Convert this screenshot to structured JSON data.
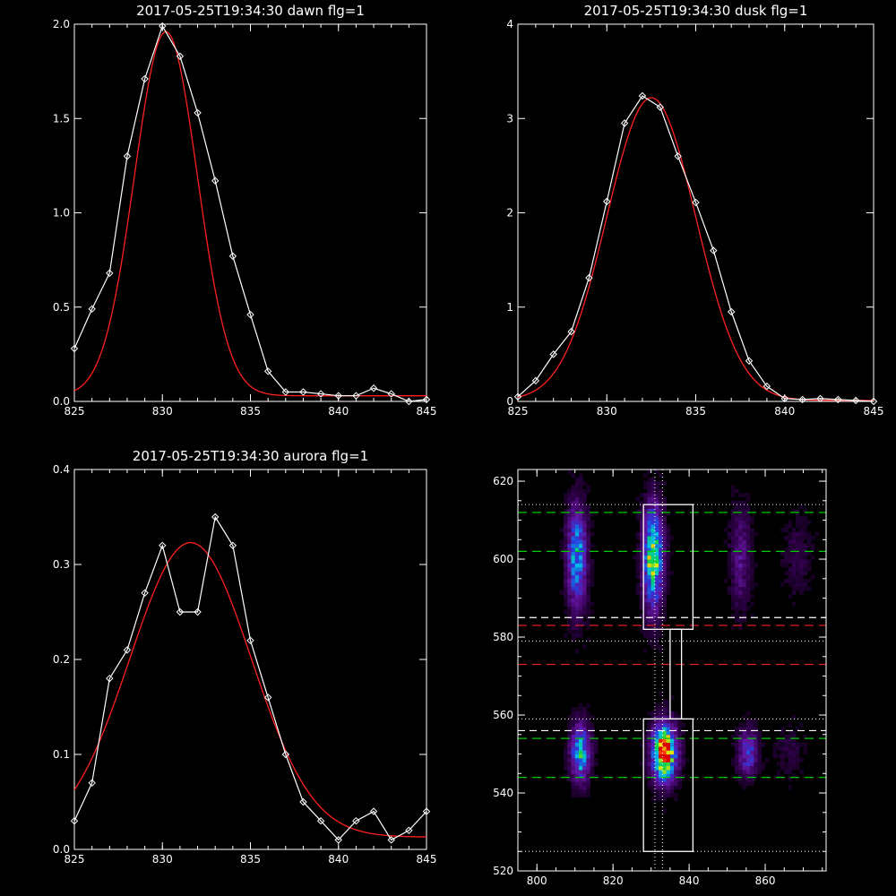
{
  "colors": {
    "background": "#000000",
    "axes": "#ffffff",
    "data_line": "#ffffff",
    "fit_line": "#ff2020",
    "green_dash": "#00cc00",
    "red_dash": "#dd2020"
  },
  "chart_data": [
    {
      "type": "line",
      "title": "2017-05-25T19:34:30 dawn flg=1",
      "xlim": [
        825,
        845
      ],
      "ylim": [
        0,
        2.0
      ],
      "xticks": [
        "825",
        "830",
        "835",
        "840",
        "845"
      ],
      "yticks": [
        "0.0",
        "0.5",
        "1.0",
        "1.5",
        "2.0"
      ],
      "series": [
        {
          "role": "data",
          "marker": "diamond",
          "x": [
            825,
            826,
            827,
            828,
            829,
            830,
            831,
            832,
            833,
            834,
            835,
            836,
            837,
            838,
            839,
            840,
            841,
            842,
            843,
            844,
            845
          ],
          "y": [
            0.28,
            0.49,
            0.68,
            1.3,
            1.71,
            1.99,
            1.83,
            1.53,
            1.17,
            0.77,
            0.46,
            0.16,
            0.05,
            0.05,
            0.04,
            0.03,
            0.03,
            0.07,
            0.04,
            0.0,
            0.01
          ]
        },
        {
          "role": "fit",
          "model": "gaussian",
          "center": 830.2,
          "sigma": 1.78,
          "amplitude": 1.93,
          "offset": 0.03
        }
      ]
    },
    {
      "type": "line",
      "title": "2017-05-25T19:34:30 dusk flg=1",
      "xlim": [
        825,
        845
      ],
      "ylim": [
        0,
        4
      ],
      "xticks": [
        "825",
        "830",
        "835",
        "840",
        "845"
      ],
      "yticks": [
        "0",
        "1",
        "2",
        "3",
        "4"
      ],
      "series": [
        {
          "role": "data",
          "marker": "diamond",
          "x": [
            825,
            826,
            827,
            828,
            829,
            830,
            831,
            832,
            833,
            834,
            835,
            836,
            837,
            838,
            839,
            840,
            841,
            842,
            843,
            844,
            845
          ],
          "y": [
            0.05,
            0.22,
            0.5,
            0.74,
            1.31,
            2.12,
            2.95,
            3.24,
            3.12,
            2.6,
            2.11,
            1.6,
            0.95,
            0.43,
            0.16,
            0.03,
            0.02,
            0.03,
            0.02,
            0.01,
            0.0
          ]
        },
        {
          "role": "fit",
          "model": "gaussian",
          "center": 832.5,
          "sigma": 2.5,
          "amplitude": 3.21,
          "offset": 0.01
        }
      ]
    },
    {
      "type": "line",
      "title": "2017-05-25T19:34:30 aurora flg=1",
      "xlim": [
        825,
        845
      ],
      "ylim": [
        0,
        0.4
      ],
      "xticks": [
        "825",
        "830",
        "835",
        "840",
        "845"
      ],
      "yticks": [
        "0.0",
        "0.1",
        "0.2",
        "0.3",
        "0.4"
      ],
      "series": [
        {
          "role": "data",
          "marker": "diamond",
          "x": [
            825,
            826,
            827,
            828,
            829,
            830,
            831,
            832,
            833,
            834,
            835,
            836,
            837,
            838,
            839,
            840,
            841,
            842,
            843,
            844,
            845
          ],
          "y": [
            0.03,
            0.07,
            0.18,
            0.21,
            0.27,
            0.32,
            0.25,
            0.25,
            0.35,
            0.32,
            0.22,
            0.16,
            0.1,
            0.05,
            0.03,
            0.01,
            0.03,
            0.04,
            0.01,
            0.02,
            0.04
          ]
        },
        {
          "role": "fit",
          "model": "gaussian",
          "center": 831.6,
          "sigma": 3.45,
          "amplitude": 0.31,
          "offset": 0.013
        }
      ]
    },
    {
      "type": "heatmap",
      "title": "",
      "xlim": [
        795,
        876
      ],
      "ylim": [
        520,
        623
      ],
      "xticks": [
        "800",
        "820",
        "840",
        "860"
      ],
      "yticks": [
        "520",
        "540",
        "560",
        "580",
        "600",
        "620"
      ],
      "colormap": "black-purple-blue-cyan-green-yellow-red",
      "blobs": [
        {
          "x": 830,
          "y": 600,
          "sx": 1.8,
          "sy": 9,
          "amp": 0.75
        },
        {
          "x": 810,
          "y": 600,
          "sx": 1.8,
          "sy": 9,
          "amp": 0.55
        },
        {
          "x": 833,
          "y": 550,
          "sx": 2.2,
          "sy": 5,
          "amp": 1.0
        },
        {
          "x": 811,
          "y": 550,
          "sx": 1.8,
          "sy": 5,
          "amp": 0.62
        },
        {
          "x": 855,
          "y": 550,
          "sx": 1.8,
          "sy": 4,
          "amp": 0.4
        },
        {
          "x": 853,
          "y": 600,
          "sx": 1.8,
          "sy": 9,
          "amp": 0.22
        },
        {
          "x": 868,
          "y": 600,
          "sx": 2.5,
          "sy": 7,
          "amp": 0.1
        },
        {
          "x": 866,
          "y": 550,
          "sx": 2.5,
          "sy": 5,
          "amp": 0.08
        }
      ],
      "boxes": [
        {
          "x0": 828,
          "x1": 841,
          "y0": 582,
          "y1": 614
        },
        {
          "x0": 835,
          "x1": 838,
          "y0": 559,
          "y1": 582
        },
        {
          "x0": 828,
          "x1": 841,
          "y0": 525,
          "y1": 559
        }
      ],
      "hlines": [
        {
          "y": 612,
          "style": "green-dash"
        },
        {
          "y": 602,
          "style": "green-dash"
        },
        {
          "y": 554,
          "style": "green-dash"
        },
        {
          "y": 544,
          "style": "green-dash"
        },
        {
          "y": 583,
          "style": "red-dash"
        },
        {
          "y": 573,
          "style": "red-dash"
        },
        {
          "y": 585,
          "style": "white-dash"
        },
        {
          "y": 556,
          "style": "white-dash"
        },
        {
          "y": 614,
          "style": "white-dot"
        },
        {
          "y": 579,
          "style": "white-dot"
        },
        {
          "y": 559,
          "style": "white-dot"
        },
        {
          "y": 525,
          "style": "white-dot"
        }
      ],
      "vlines": [
        {
          "x": 831,
          "style": "white-dot"
        },
        {
          "x": 833,
          "style": "white-dot"
        }
      ]
    }
  ]
}
